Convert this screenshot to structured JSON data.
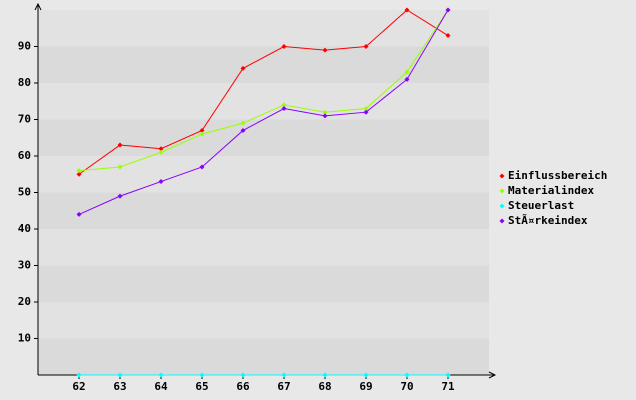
{
  "chart_data": {
    "type": "line",
    "x": [
      62,
      63,
      64,
      65,
      66,
      67,
      68,
      69,
      70,
      71
    ],
    "xlim": [
      61,
      72
    ],
    "xticks": [
      62,
      63,
      64,
      65,
      66,
      67,
      68,
      69,
      70,
      71
    ],
    "ylim": [
      0,
      100
    ],
    "yticks": [
      10,
      20,
      30,
      40,
      50,
      60,
      70,
      80,
      90
    ],
    "grid": true,
    "legend": "right",
    "series": [
      {
        "name": "Einflussbereich",
        "color": "#ff0000",
        "values": [
          55,
          63,
          62,
          67,
          84,
          90,
          89,
          90,
          100,
          93
        ]
      },
      {
        "name": "Materialindex",
        "color": "#99ff00",
        "values": [
          56,
          57,
          61,
          66,
          69,
          74,
          72,
          73,
          83,
          100
        ]
      },
      {
        "name": "Steuerlast",
        "color": "#00ffff",
        "values": [
          0,
          0,
          0,
          0,
          0,
          0,
          0,
          0,
          0,
          0
        ]
      },
      {
        "name": "StÃ¤rkeindex",
        "color": "#8800ff",
        "values": [
          44,
          49,
          53,
          57,
          67,
          73,
          71,
          72,
          81,
          100
        ]
      }
    ]
  }
}
